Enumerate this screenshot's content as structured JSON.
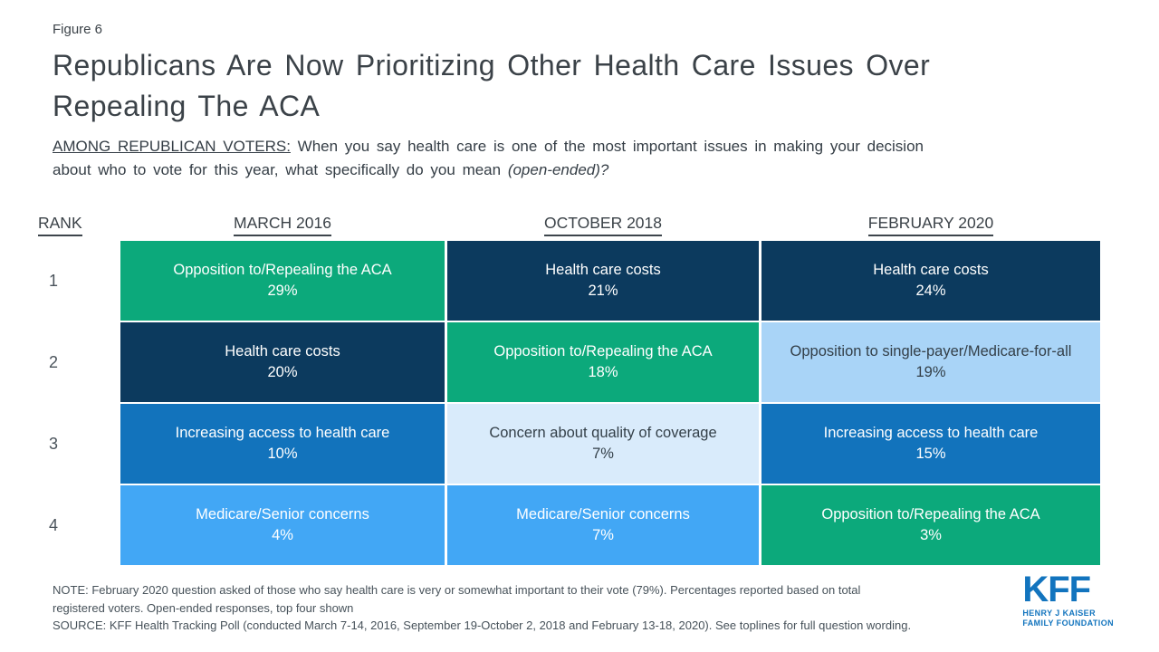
{
  "figure_label": "Figure 6",
  "title_lines": [
    "Republicans Are Now Prioritizing Other Health Care Issues Over",
    "Repealing The ACA"
  ],
  "subtitle": {
    "lead": "AMONG REPUBLICAN VOTERS:",
    "line1_rest": " When you say health care is one of the most important issues in making your decision",
    "line2": "about who to vote for this year, what specifically do you mean ",
    "emphasis": "(open-ended)?"
  },
  "table": {
    "rank_header": "RANK",
    "column_headers": [
      "MARCH 2016",
      "OCTOBER 2018",
      "FEBRUARY 2020"
    ],
    "rows": [
      {
        "rank": "1",
        "cells": [
          {
            "label": "Opposition to/Repealing the ACA",
            "value": "29%",
            "style": "green"
          },
          {
            "label": "Health care costs",
            "value": "21%",
            "style": "navy"
          },
          {
            "label": "Health care costs",
            "value": "24%",
            "style": "navy"
          }
        ]
      },
      {
        "rank": "2",
        "cells": [
          {
            "label": "Health care costs",
            "value": "20%",
            "style": "navy"
          },
          {
            "label": "Opposition to/Repealing the ACA",
            "value": "18%",
            "style": "green"
          },
          {
            "label": "Opposition to single-payer/Medicare-for-all",
            "value": "19%",
            "style": "lightblue"
          }
        ]
      },
      {
        "rank": "3",
        "cells": [
          {
            "label": "Increasing access to health care",
            "value": "10%",
            "style": "blue"
          },
          {
            "label": "Concern about quality of coverage",
            "value": "7%",
            "style": "paleblue"
          },
          {
            "label": "Increasing access to health care",
            "value": "15%",
            "style": "blue"
          }
        ]
      },
      {
        "rank": "4",
        "cells": [
          {
            "label": "Medicare/Senior concerns",
            "value": "4%",
            "style": "sky"
          },
          {
            "label": "Medicare/Senior concerns",
            "value": "7%",
            "style": "sky"
          },
          {
            "label": "Opposition to/Repealing the ACA",
            "value": "3%",
            "style": "green"
          }
        ]
      }
    ]
  },
  "cell_styles": {
    "green": {
      "bg": "#0CA97B",
      "text": "#FFFFFF"
    },
    "navy": {
      "bg": "#0C3A5E",
      "text": "#FFFFFF"
    },
    "blue": {
      "bg": "#1273BC",
      "text": "#FFFFFF"
    },
    "sky": {
      "bg": "#42A7F5",
      "text": "#FFFFFF"
    },
    "lightblue": {
      "bg": "#A9D4F7",
      "text": "#333F48"
    },
    "paleblue": {
      "bg": "#D9EBFB",
      "text": "#333F48"
    }
  },
  "colors": {
    "title_text": "#3B4248",
    "notes_text": "#47525A",
    "rank_text": "#4A535B",
    "logo_blue": "#1274BE"
  },
  "notes": [
    "NOTE: February 2020 question asked of those who say health care is very or somewhat important to their vote (79%). Percentages reported based on total",
    "registered voters. Open-ended responses, top four shown",
    "SOURCE: KFF Health Tracking Poll (conducted March 7-14, 2016, September 19-October 2, 2018 and February 13-18, 2020). See toplines for full question wording."
  ],
  "logo": {
    "acronym": "KFF",
    "tagline1": "HENRY J KAISER",
    "tagline2": "FAMILY FOUNDATION"
  },
  "chart_data": {
    "type": "table",
    "title": "Republicans Are Now Prioritizing Other Health Care Issues Over Repealing The ACA",
    "question": "AMONG REPUBLICAN VOTERS: When you say health care is one of the most important issues in making your decision about who to vote for this year, what specifically do you mean (open-ended)?",
    "columns": [
      "MARCH 2016",
      "OCTOBER 2018",
      "FEBRUARY 2020"
    ],
    "rank_labels": [
      "1",
      "2",
      "3",
      "4"
    ],
    "series": [
      {
        "name": "MARCH 2016",
        "values": [
          {
            "issue": "Opposition to/Repealing the ACA",
            "percent": 29
          },
          {
            "issue": "Health care costs",
            "percent": 20
          },
          {
            "issue": "Increasing access to health care",
            "percent": 10
          },
          {
            "issue": "Medicare/Senior concerns",
            "percent": 4
          }
        ]
      },
      {
        "name": "OCTOBER 2018",
        "values": [
          {
            "issue": "Health care costs",
            "percent": 21
          },
          {
            "issue": "Opposition to/Repealing the ACA",
            "percent": 18
          },
          {
            "issue": "Concern about quality of coverage",
            "percent": 7
          },
          {
            "issue": "Medicare/Senior concerns",
            "percent": 7
          }
        ]
      },
      {
        "name": "FEBRUARY 2020",
        "values": [
          {
            "issue": "Health care costs",
            "percent": 24
          },
          {
            "issue": "Opposition to single-payer/Medicare-for-all",
            "percent": 19
          },
          {
            "issue": "Increasing access to health care",
            "percent": 15
          },
          {
            "issue": "Opposition to/Repealing the ACA",
            "percent": 3
          }
        ]
      }
    ]
  }
}
